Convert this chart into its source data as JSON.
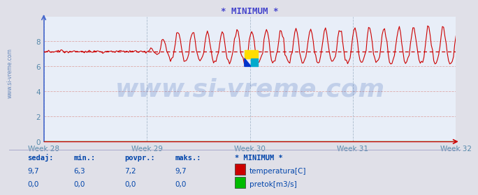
{
  "title": "* MINIMUM *",
  "title_color": "#4444cc",
  "bg_color": "#e0e0e8",
  "plot_bg_color": "#e8eef8",
  "grid_color_h": "#ddaaaa",
  "grid_color_v": "#aabbcc",
  "tick_color": "#5588aa",
  "xticklabels": [
    "Week 28",
    "Week 29",
    "Week 30",
    "Week 31",
    "Week 32"
  ],
  "xtick_positions": [
    0,
    7,
    14,
    21,
    28
  ],
  "ylim": [
    0,
    10
  ],
  "yticks": [
    0,
    2,
    4,
    6,
    8
  ],
  "xlim_days": [
    0,
    28
  ],
  "num_points": 336,
  "temp_color": "#cc0000",
  "avg_line_color": "#cc0000",
  "avg_line_style": "--",
  "avg_value": 7.2,
  "temp_min_val": 6.3,
  "temp_max_val": 9.7,
  "pretok_color": "#00bb00",
  "watermark_text": "www.si-vreme.com",
  "watermark_color": "#1144aa",
  "watermark_alpha": 0.18,
  "watermark_fontsize": 26,
  "left_label": "www.si-vreme.com",
  "left_label_color": "#6688bb",
  "footer_label_color": "#0044aa",
  "footer_labels": [
    "sedaj:",
    "min.:",
    "povpr.:",
    "maks.:"
  ],
  "footer_values_temp": [
    "9,7",
    "6,3",
    "7,2",
    "9,7"
  ],
  "footer_values_pretok": [
    "0,0",
    "0,0",
    "0,0",
    "0,0"
  ],
  "footer_station": "* MINIMUM *",
  "legend_temp": "temperatura[C]",
  "legend_pretok": "pretok[m3/s]",
  "left_spine_color": "#4466cc",
  "bottom_spine_color": "#cc0000",
  "arrow_color": "#cc0000",
  "top_spine_off": true,
  "right_spine_off": true
}
